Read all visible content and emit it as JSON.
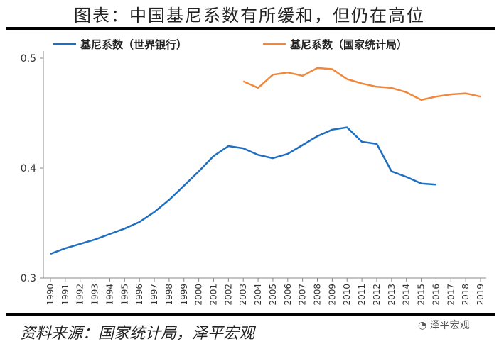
{
  "title": "图表：中国基尼系数有所缓和，但仍在高位",
  "source": "资料来源：国家统计局，泽平宏观",
  "watermark": "泽平宏观",
  "chart_data": {
    "type": "line",
    "title": "图表：中国基尼系数有所缓和，但仍在高位",
    "xlabel": "",
    "ylabel": "",
    "x": [
      1990,
      1991,
      1992,
      1993,
      1994,
      1995,
      1996,
      1997,
      1998,
      1999,
      2000,
      2001,
      2002,
      2003,
      2004,
      2005,
      2006,
      2007,
      2008,
      2009,
      2010,
      2011,
      2012,
      2013,
      2014,
      2015,
      2016,
      2017,
      2018,
      2019
    ],
    "ylim": [
      0.3,
      0.5
    ],
    "yticks": [
      "0.3",
      "0.4",
      "0.5"
    ],
    "grid": false,
    "legend": "top",
    "series": [
      {
        "name": "基尼系数（世界银行）",
        "color": "#1f6fc0",
        "values": [
          0.322,
          0.327,
          0.331,
          0.335,
          0.34,
          0.345,
          0.351,
          0.36,
          0.371,
          0.384,
          0.397,
          0.411,
          0.42,
          0.418,
          0.412,
          0.409,
          0.413,
          0.421,
          0.429,
          0.435,
          0.437,
          0.424,
          0.422,
          0.397,
          0.392,
          0.386,
          0.385,
          null,
          null,
          null
        ]
      },
      {
        "name": "基尼系数（国家统计局）",
        "color": "#f0873a",
        "values": [
          null,
          null,
          null,
          null,
          null,
          null,
          null,
          null,
          null,
          null,
          null,
          null,
          null,
          0.479,
          0.473,
          0.485,
          0.487,
          0.484,
          0.491,
          0.49,
          0.481,
          0.477,
          0.474,
          0.473,
          0.469,
          0.462,
          0.465,
          0.467,
          0.468,
          0.465
        ]
      }
    ]
  }
}
